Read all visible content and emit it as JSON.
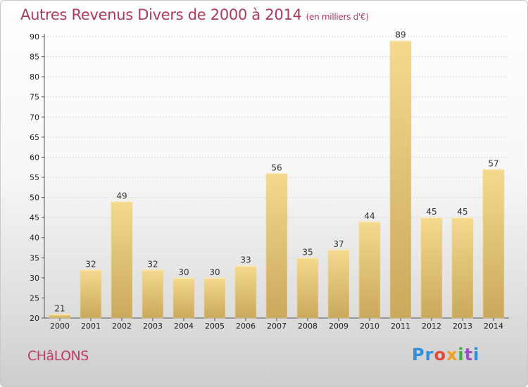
{
  "title": "Autres Revenus Divers de 2000 à 2014",
  "subtitle": "(en milliers d'€)",
  "city": "CHâLONS",
  "logo": {
    "p1": "Pr",
    "p2": "o",
    "p3": "x",
    "p4": "i",
    "p5": "t",
    "p6": "i"
  },
  "colors": {
    "bar_top": "#f5d98e",
    "bar_bottom": "#c9a95c",
    "title": "#b03a5a"
  },
  "chart_data": {
    "type": "bar",
    "title": "Autres Revenus Divers de 2000 à 2014",
    "xlabel": "",
    "ylabel": "",
    "categories": [
      "2000",
      "2001",
      "2002",
      "2003",
      "2004",
      "2005",
      "2006",
      "2007",
      "2008",
      "2009",
      "2010",
      "2011",
      "2012",
      "2013",
      "2014"
    ],
    "values": [
      21,
      32,
      49,
      32,
      30,
      30,
      33,
      56,
      35,
      37,
      44,
      89,
      45,
      45,
      57
    ],
    "ylim": [
      20,
      90
    ],
    "yticks": [
      20,
      25,
      30,
      35,
      40,
      45,
      50,
      55,
      60,
      65,
      70,
      75,
      80,
      85,
      90
    ],
    "grid": true,
    "legend": "none"
  }
}
